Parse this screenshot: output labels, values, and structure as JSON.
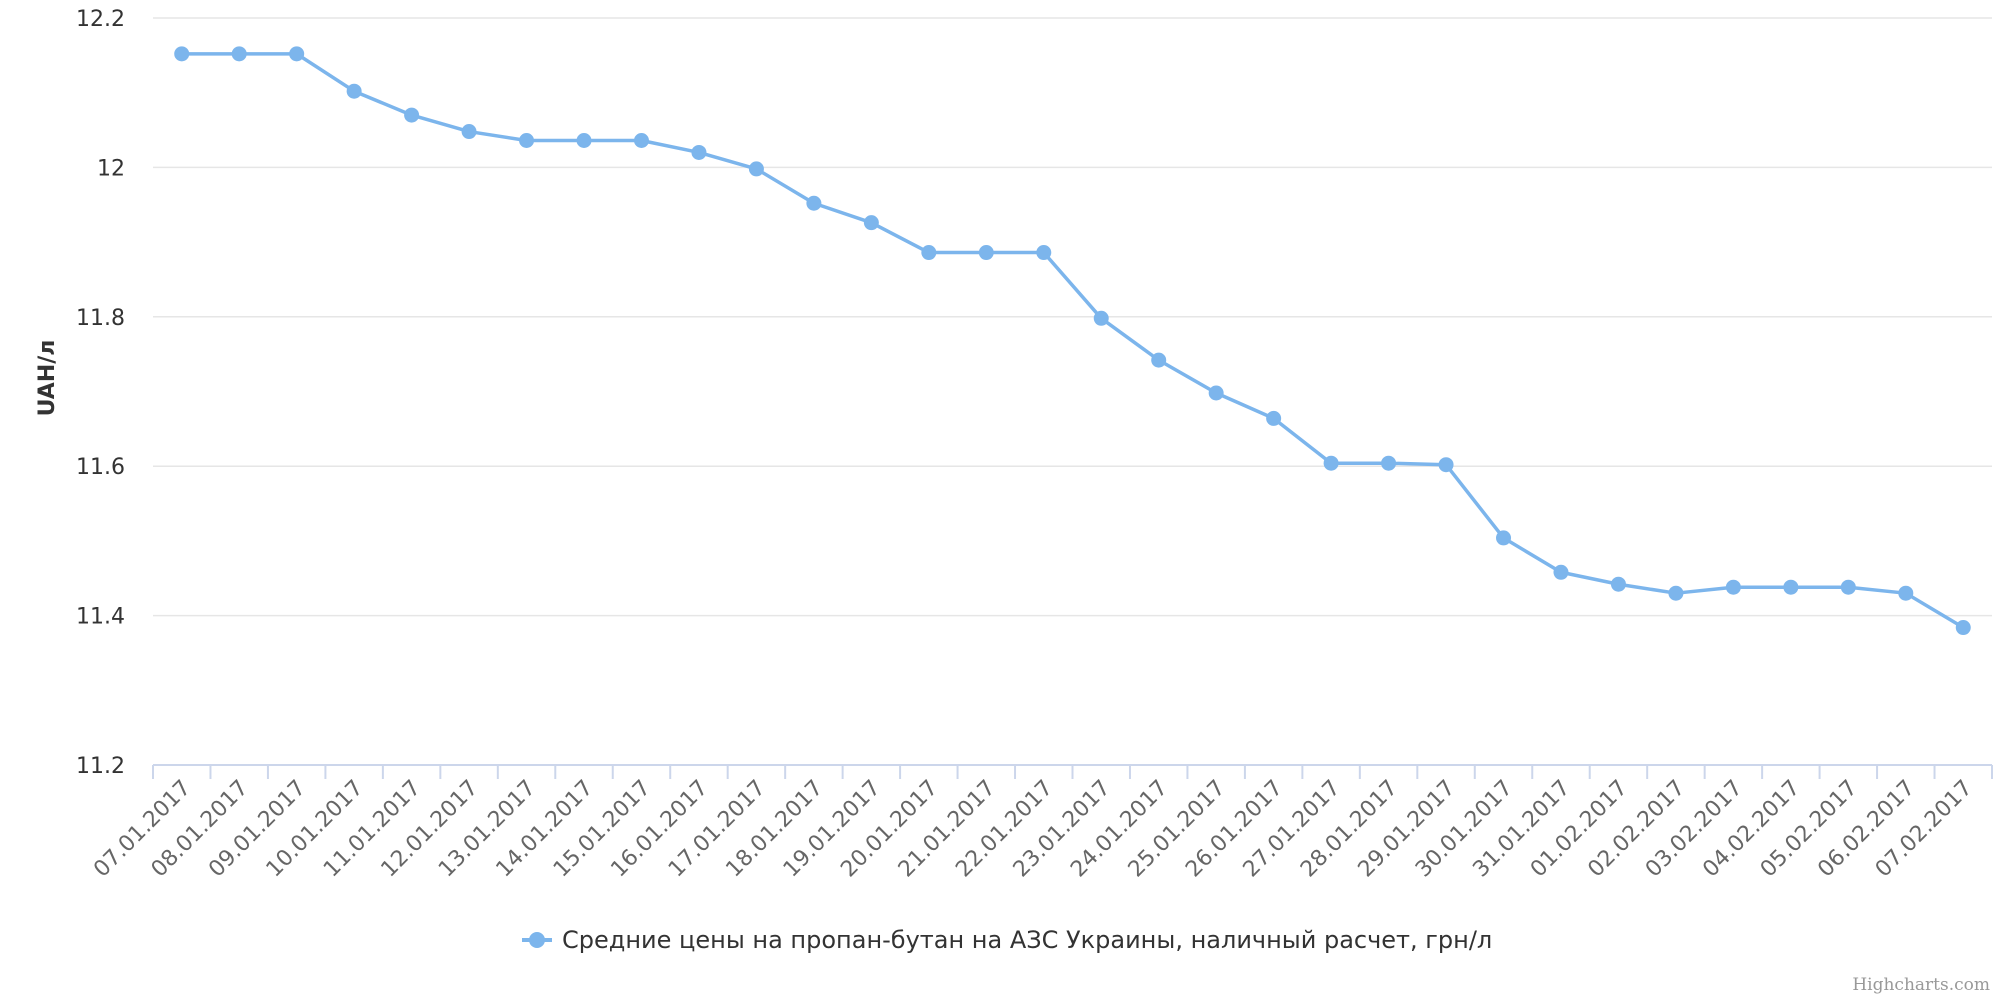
{
  "chart_data": {
    "type": "line",
    "ylabel": "UAH/л",
    "ylim": [
      11.2,
      12.2
    ],
    "yticks": [
      11.2,
      11.4,
      11.6,
      11.8,
      12,
      12.2
    ],
    "ytick_labels": [
      "11.2",
      "11.4",
      "11.6",
      "11.8",
      "12",
      "12.2"
    ],
    "grid": true,
    "legend_position": "bottom-center",
    "categories": [
      "07.01.2017",
      "08.01.2017",
      "09.01.2017",
      "10.01.2017",
      "11.01.2017",
      "12.01.2017",
      "13.01.2017",
      "14.01.2017",
      "15.01.2017",
      "16.01.2017",
      "17.01.2017",
      "18.01.2017",
      "19.01.2017",
      "20.01.2017",
      "21.01.2017",
      "22.01.2017",
      "23.01.2017",
      "24.01.2017",
      "25.01.2017",
      "26.01.2017",
      "27.01.2017",
      "28.01.2017",
      "29.01.2017",
      "30.01.2017",
      "31.01.2017",
      "01.02.2017",
      "02.02.2017",
      "03.02.2017",
      "04.02.2017",
      "05.02.2017",
      "06.02.2017",
      "07.02.2017"
    ],
    "series": [
      {
        "name": "Средние цены на пропан-бутан на АЗС Украины, наличный расчет, грн/л",
        "color": "#7cb5ec",
        "values": [
          12.152,
          12.152,
          12.152,
          12.102,
          12.07,
          12.048,
          12.036,
          12.036,
          12.036,
          12.02,
          11.998,
          11.952,
          11.926,
          11.886,
          11.886,
          11.886,
          11.798,
          11.742,
          11.698,
          11.664,
          11.604,
          11.604,
          11.602,
          11.504,
          11.458,
          11.442,
          11.43,
          11.438,
          11.438,
          11.438,
          11.43,
          11.384
        ]
      }
    ]
  },
  "credits": "Highcharts.com"
}
